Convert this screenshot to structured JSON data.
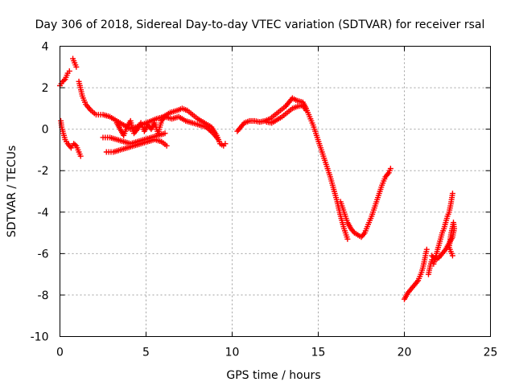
{
  "chart_data": {
    "type": "scatter",
    "title": "Day 306 of 2018, Sidereal Day-to-day VTEC variation (SDTVAR) for receiver rsal",
    "xlabel": "GPS time / hours",
    "ylabel": "SDTVAR / TECUs",
    "xlim": [
      0,
      25
    ],
    "ylim": [
      -10,
      4
    ],
    "xticks": [
      0,
      5,
      10,
      15,
      20,
      25
    ],
    "yticks": [
      -10,
      -8,
      -6,
      -4,
      -2,
      0,
      2,
      4
    ],
    "xtick_labels": [
      "0",
      "5",
      "10",
      "15",
      "20",
      "25"
    ],
    "ytick_labels": [
      "-10",
      "-8",
      "-6",
      "-4",
      "-2",
      "0",
      "2",
      "4"
    ],
    "grid": true,
    "marker": "plus",
    "color": "#ff0000",
    "series": [
      {
        "points": [
          [
            0.0,
            2.1
          ],
          [
            0.15,
            2.3
          ],
          [
            0.3,
            2.4
          ],
          [
            0.45,
            2.7
          ],
          [
            0.55,
            2.8
          ]
        ]
      },
      {
        "points": [
          [
            0.75,
            3.4
          ],
          [
            0.85,
            3.2
          ],
          [
            0.95,
            3.0
          ]
        ]
      },
      {
        "points": [
          [
            1.1,
            2.3
          ],
          [
            1.3,
            1.6
          ],
          [
            1.5,
            1.2
          ],
          [
            1.8,
            0.9
          ],
          [
            2.1,
            0.7
          ],
          [
            2.5,
            0.7
          ],
          [
            2.9,
            0.6
          ],
          [
            3.3,
            0.4
          ],
          [
            3.7,
            0.2
          ],
          [
            4.1,
            0.0
          ],
          [
            4.4,
            0.1
          ],
          [
            4.7,
            0.2
          ],
          [
            5.0,
            0.3
          ],
          [
            5.3,
            0.4
          ],
          [
            5.6,
            0.5
          ],
          [
            6.0,
            0.6
          ],
          [
            6.4,
            0.8
          ],
          [
            6.8,
            0.9
          ],
          [
            7.1,
            1.0
          ],
          [
            7.4,
            0.9
          ],
          [
            7.7,
            0.7
          ],
          [
            8.0,
            0.5
          ],
          [
            8.4,
            0.3
          ],
          [
            8.8,
            0.1
          ],
          [
            9.1,
            -0.3
          ],
          [
            9.3,
            -0.7
          ],
          [
            9.5,
            -0.8
          ],
          [
            9.6,
            -0.7
          ]
        ]
      },
      {
        "points": [
          [
            0.05,
            0.4
          ],
          [
            0.1,
            0.1
          ],
          [
            0.2,
            -0.2
          ],
          [
            0.3,
            -0.5
          ],
          [
            0.45,
            -0.7
          ],
          [
            0.65,
            -0.9
          ],
          [
            0.8,
            -0.7
          ],
          [
            0.95,
            -0.8
          ],
          [
            1.05,
            -1.0
          ],
          [
            1.2,
            -1.3
          ]
        ]
      },
      {
        "points": [
          [
            2.5,
            -0.4
          ],
          [
            2.9,
            -0.4
          ],
          [
            3.3,
            -0.5
          ],
          [
            3.7,
            -0.6
          ],
          [
            4.1,
            -0.7
          ],
          [
            4.5,
            -0.6
          ],
          [
            4.9,
            -0.5
          ],
          [
            5.3,
            -0.4
          ],
          [
            5.7,
            -0.3
          ],
          [
            6.1,
            -0.2
          ]
        ]
      },
      {
        "points": [
          [
            2.7,
            -1.1
          ],
          [
            3.1,
            -1.1
          ],
          [
            3.5,
            -1.0
          ],
          [
            3.9,
            -0.9
          ],
          [
            4.3,
            -0.8
          ],
          [
            4.7,
            -0.7
          ],
          [
            5.1,
            -0.6
          ],
          [
            5.5,
            -0.5
          ],
          [
            5.9,
            -0.6
          ],
          [
            6.2,
            -0.8
          ]
        ]
      },
      {
        "points": [
          [
            3.3,
            0.3
          ],
          [
            3.5,
            0.0
          ],
          [
            3.7,
            -0.3
          ],
          [
            3.9,
            0.1
          ],
          [
            4.1,
            0.4
          ],
          [
            4.3,
            -0.2
          ],
          [
            4.5,
            0.0
          ],
          [
            4.7,
            0.3
          ],
          [
            4.9,
            -0.1
          ],
          [
            5.1,
            0.2
          ],
          [
            5.3,
            0.0
          ],
          [
            5.5,
            0.3
          ],
          [
            5.7,
            -0.2
          ],
          [
            5.9,
            0.4
          ],
          [
            6.1,
            0.6
          ],
          [
            6.5,
            0.5
          ],
          [
            6.9,
            0.6
          ],
          [
            7.3,
            0.4
          ],
          [
            7.7,
            0.3
          ],
          [
            8.1,
            0.2
          ],
          [
            8.5,
            0.1
          ],
          [
            8.9,
            -0.2
          ],
          [
            9.2,
            -0.5
          ]
        ]
      },
      {
        "points": [
          [
            10.3,
            -0.1
          ],
          [
            10.5,
            0.1
          ],
          [
            10.7,
            0.3
          ],
          [
            11.0,
            0.4
          ],
          [
            11.3,
            0.4
          ],
          [
            11.6,
            0.35
          ],
          [
            11.9,
            0.4
          ],
          [
            12.2,
            0.5
          ],
          [
            12.5,
            0.7
          ],
          [
            12.8,
            0.9
          ],
          [
            13.1,
            1.1
          ],
          [
            13.3,
            1.3
          ],
          [
            13.5,
            1.5
          ],
          [
            13.7,
            1.4
          ],
          [
            13.9,
            1.35
          ],
          [
            14.1,
            1.3
          ],
          [
            14.3,
            1.0
          ],
          [
            14.5,
            0.6
          ],
          [
            14.7,
            0.2
          ],
          [
            14.9,
            -0.3
          ],
          [
            15.1,
            -0.8
          ],
          [
            15.3,
            -1.3
          ],
          [
            15.5,
            -1.8
          ],
          [
            15.7,
            -2.3
          ],
          [
            15.9,
            -2.9
          ],
          [
            16.1,
            -3.5
          ],
          [
            16.3,
            -4.2
          ],
          [
            16.5,
            -4.8
          ],
          [
            16.7,
            -5.3
          ]
        ]
      },
      {
        "points": [
          [
            12.0,
            0.35
          ],
          [
            12.3,
            0.3
          ],
          [
            12.6,
            0.45
          ],
          [
            12.9,
            0.6
          ],
          [
            13.2,
            0.8
          ],
          [
            13.5,
            1.0
          ],
          [
            13.8,
            1.1
          ],
          [
            14.1,
            1.15
          ],
          [
            14.3,
            0.9
          ]
        ]
      },
      {
        "points": [
          [
            16.3,
            -3.5
          ],
          [
            16.5,
            -4.0
          ],
          [
            16.7,
            -4.5
          ],
          [
            16.9,
            -4.8
          ],
          [
            17.1,
            -5.0
          ],
          [
            17.3,
            -5.1
          ],
          [
            17.5,
            -5.2
          ],
          [
            17.7,
            -5.0
          ],
          [
            17.9,
            -4.6
          ],
          [
            18.1,
            -4.2
          ],
          [
            18.3,
            -3.7
          ],
          [
            18.5,
            -3.2
          ],
          [
            18.7,
            -2.7
          ],
          [
            18.9,
            -2.3
          ],
          [
            19.1,
            -2.1
          ],
          [
            19.2,
            -1.9
          ]
        ]
      },
      {
        "points": [
          [
            20.0,
            -8.2
          ],
          [
            20.2,
            -7.9
          ],
          [
            20.4,
            -7.7
          ],
          [
            20.6,
            -7.5
          ],
          [
            20.8,
            -7.3
          ],
          [
            21.0,
            -6.9
          ],
          [
            21.1,
            -6.6
          ],
          [
            21.2,
            -6.2
          ],
          [
            21.3,
            -5.8
          ]
        ]
      },
      {
        "points": [
          [
            21.4,
            -7.0
          ],
          [
            21.5,
            -6.6
          ],
          [
            21.6,
            -6.3
          ],
          [
            21.7,
            -6.5
          ],
          [
            21.8,
            -6.2
          ],
          [
            21.9,
            -5.9
          ],
          [
            22.0,
            -5.6
          ],
          [
            22.1,
            -5.3
          ],
          [
            22.2,
            -5.0
          ],
          [
            22.3,
            -4.8
          ],
          [
            22.4,
            -4.5
          ],
          [
            22.5,
            -4.2
          ],
          [
            22.6,
            -4.0
          ],
          [
            22.7,
            -3.6
          ],
          [
            22.8,
            -3.1
          ]
        ]
      },
      {
        "points": [
          [
            21.6,
            -6.1
          ],
          [
            21.8,
            -6.3
          ],
          [
            22.0,
            -6.2
          ],
          [
            22.2,
            -6.0
          ],
          [
            22.4,
            -5.8
          ],
          [
            22.6,
            -5.5
          ],
          [
            22.8,
            -5.2
          ],
          [
            22.9,
            -4.8
          ],
          [
            22.85,
            -4.5
          ],
          [
            22.7,
            -5.1
          ],
          [
            22.6,
            -5.7
          ],
          [
            22.8,
            -6.1
          ]
        ]
      }
    ]
  }
}
